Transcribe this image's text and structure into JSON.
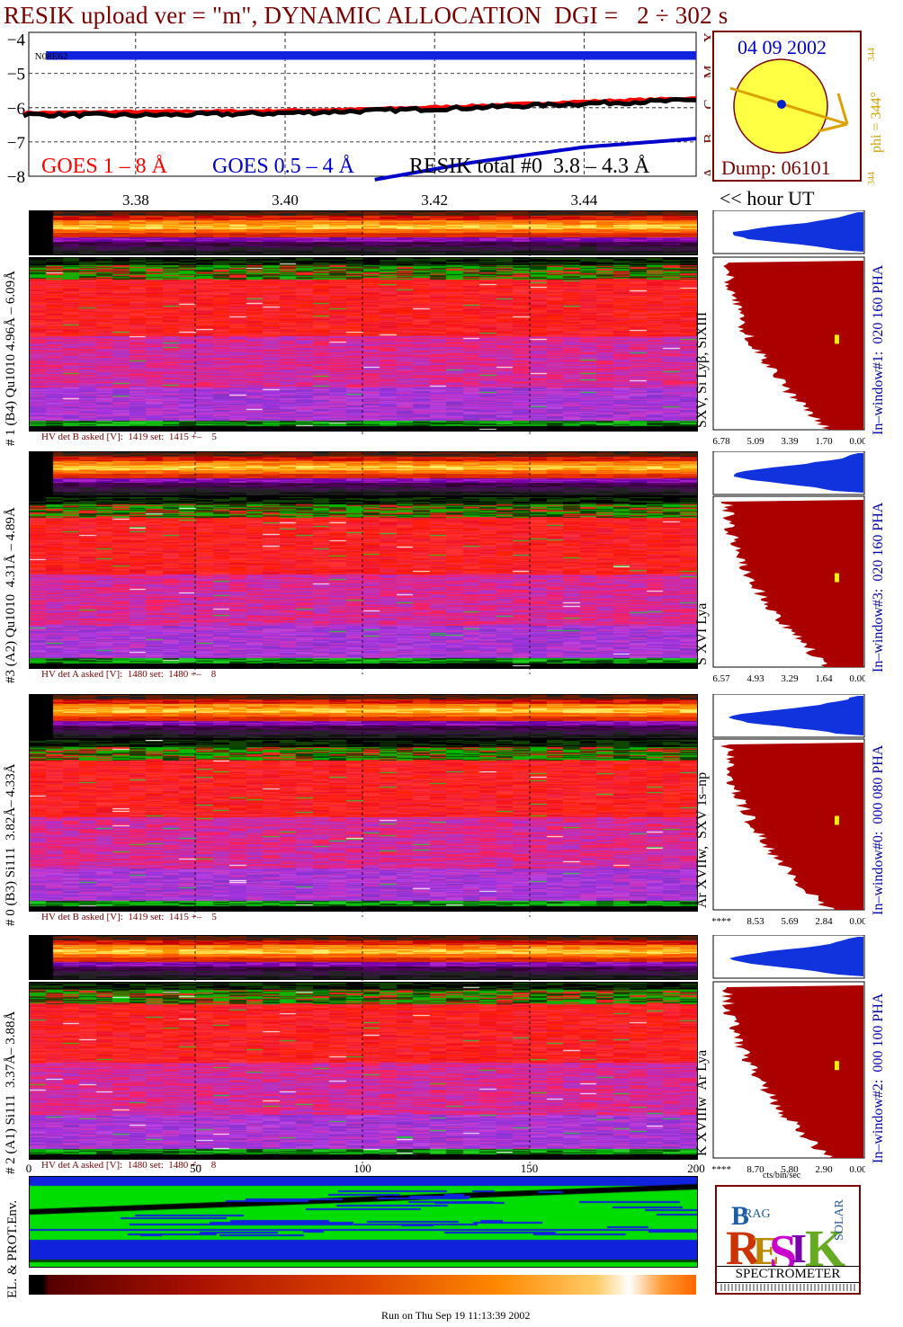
{
  "title": "RESIK upload ver = \"m\", DYNAMIC ALLOCATION  DGI =   2 ÷ 302 s",
  "colors": {
    "title": "#7a0000",
    "goes_low": "#ff0000",
    "goes_high": "#0000cc",
    "resik": "#000000",
    "histogram": "#aa0000",
    "pha": "#1133dd",
    "env_green": "#00dd00",
    "env_blue": "#1122dd"
  },
  "chart_data": [
    {
      "type": "line",
      "name": "light-curves",
      "ylim": [
        -8,
        -3.8
      ],
      "yticks": [
        "-4",
        "-5",
        "-6",
        "-7",
        "-8"
      ],
      "xticks": [
        "3.38",
        "3.40",
        "3.42",
        "3.44"
      ],
      "xlabel_right": "<< hour UT",
      "class_letters": [
        "X",
        "M",
        "C",
        "B",
        "A"
      ],
      "series": [
        {
          "name": "GOES 1 – 8 Å",
          "color": "#ff0000",
          "x": [
            3.365,
            3.38,
            3.395,
            3.41,
            3.425,
            3.44,
            3.455
          ],
          "y": [
            -6.15,
            -6.12,
            -6.1,
            -6.05,
            -5.95,
            -5.82,
            -5.72
          ]
        },
        {
          "name": "RESIK total #0  3.8 – 4.3 Å",
          "color": "#000000",
          "x": [
            3.365,
            3.38,
            3.395,
            3.41,
            3.425,
            3.44,
            3.455
          ],
          "y": [
            -6.2,
            -6.22,
            -6.18,
            -6.1,
            -6.0,
            -5.88,
            -5.78
          ]
        },
        {
          "name": "GOES 0.5 – 4 Å",
          "color": "#0000cc",
          "x": [
            3.412,
            3.425,
            3.44,
            3.455
          ],
          "y": [
            -8.1,
            -7.6,
            -7.15,
            -6.9
          ]
        }
      ],
      "marker": "N08E62"
    },
    {
      "type": "heatmap",
      "name": "detector-spectra",
      "x_axis": {
        "ticks": [
          "0",
          "50",
          "100",
          "150",
          "200"
        ],
        "range": [
          0,
          200
        ]
      },
      "detectors": [
        {
          "label": "# 1 (B4) Qu1010 4.96Å – 6.09Å",
          "lines": "SXV, Si Lyβ, SiXIII",
          "window": "In–window#1:  020 160 PHA",
          "hv": "HV det B asked [V]:  1419 set:  1415 +–    5",
          "hist_ticks": [
            "6.78",
            "5.09",
            "3.39",
            "1.70",
            "0.00"
          ]
        },
        {
          "label": "#3 (A2) Qu1010  4.31Å – 4.89Å",
          "lines": "S XVI Lya",
          "window": "In–window#3:  020 160 PHA",
          "hv": "HV det A asked [V]:  1480 set:  1480 +–    8",
          "hist_ticks": [
            "6.57",
            "4.93",
            "3.29",
            "1.64",
            "0.00"
          ]
        },
        {
          "label": "# 0 (B3) Si111  3.82Å– 4.33Å",
          "lines": "Ar XVIIw,  SXV 1s–np",
          "window": "In–window#0:  000 080 PHA",
          "hv": "HV det B asked [V]:  1419 set:  1415 +–    5",
          "hist_ticks": [
            "****",
            "8.53",
            "5.69",
            "2.84",
            "0.00"
          ]
        },
        {
          "label": "# 2 (A1) Si111  3.37Å– 3.88Å",
          "lines": "K XVIIIw  Ar Lya",
          "window": "In–window#2:  000 100 PHA",
          "hv": "HV det A asked [V]:  1480 set:  1480 +–    8",
          "hist_ticks": [
            "****",
            "8.70",
            "5.80",
            "2.90",
            "0.00"
          ]
        }
      ],
      "hist_xlabel": "cts/bin/sec"
    }
  ],
  "sun": {
    "date": "04 09 2002",
    "phi": "phi = 344°",
    "phi_sub": "344",
    "dump": "Dump: 06101",
    "side_a": "344",
    "side_b": "344"
  },
  "env_label": "EL. & PROT.Env.",
  "logo": {
    "top": "BRAG",
    "letters": "RESIK",
    "side": "SOLAR",
    "bottom": "SPECTROMETER"
  },
  "footer": "Run on Thu Sep 19 11:13:39 2002"
}
